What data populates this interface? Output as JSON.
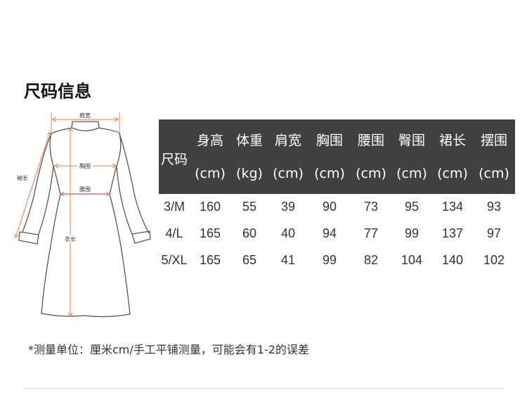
{
  "title": "尺码信息",
  "diagram": {
    "labels": {
      "shoulder": "肩宽",
      "chest": "胸围",
      "waist": "腰围",
      "sleeve": "袖长",
      "length": "衣长"
    },
    "arrow_color": "#f07a50"
  },
  "table": {
    "size_header": "尺码",
    "columns": [
      {
        "name": "身高",
        "unit": "(cm)"
      },
      {
        "name": "体重",
        "unit": "(kg)"
      },
      {
        "name": "肩宽",
        "unit": "(cm)"
      },
      {
        "name": "胸围",
        "unit": "(cm)"
      },
      {
        "name": "腰围",
        "unit": "(cm)"
      },
      {
        "name": "臀围",
        "unit": "(cm)"
      },
      {
        "name": "裙长",
        "unit": "(cm)"
      },
      {
        "name": "摆围",
        "unit": "(cm)"
      }
    ],
    "rows": [
      {
        "size": "3/M",
        "values": [
          "160",
          "55",
          "39",
          "90",
          "73",
          "95",
          "134",
          "93"
        ]
      },
      {
        "size": "4/L",
        "values": [
          "165",
          "60",
          "40",
          "94",
          "77",
          "99",
          "137",
          "97"
        ]
      },
      {
        "size": "5/XL",
        "values": [
          "165",
          "65",
          "41",
          "99",
          "82",
          "104",
          "140",
          "102"
        ]
      }
    ],
    "header_bg": "#404040"
  },
  "note": "*测量单位：厘米cm/手工平铺测量，可能会有1-2的误差"
}
